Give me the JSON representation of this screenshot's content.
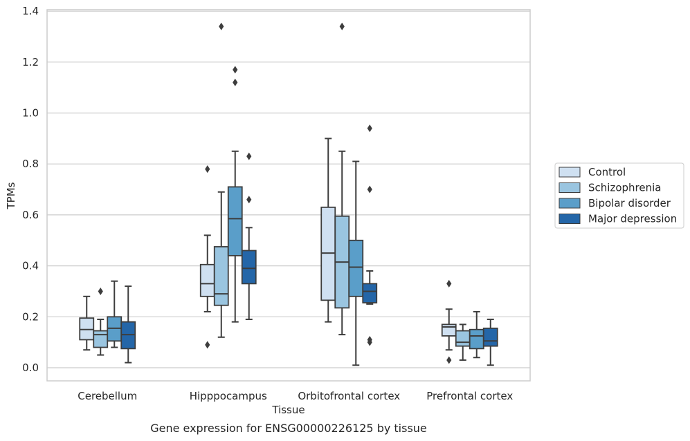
{
  "caption": "Gene expression for ENSG00000226125 by tissue",
  "chart_data": {
    "type": "box",
    "xlabel": "Tissue",
    "ylabel": "TPMs",
    "ylim": [
      -0.05,
      1.41
    ],
    "yticks": [
      "0.0",
      "0.2",
      "0.4",
      "0.6",
      "0.8",
      "1.0",
      "1.2",
      "1.4"
    ],
    "grid": "horizontal",
    "legend_position": "right",
    "categories": [
      "Cerebellum",
      "Hipppocampus",
      "Orbitofrontal cortex",
      "Prefrontal cortex"
    ],
    "series": [
      {
        "name": "Control",
        "color": "#cfe0f1",
        "boxes": [
          {
            "whislo": 0.07,
            "q1": 0.11,
            "med": 0.15,
            "q3": 0.195,
            "whishi": 0.28,
            "fliers": []
          },
          {
            "whislo": 0.22,
            "q1": 0.28,
            "med": 0.33,
            "q3": 0.405,
            "whishi": 0.52,
            "fliers": [
              0.09,
              0.78
            ]
          },
          {
            "whislo": 0.18,
            "q1": 0.265,
            "med": 0.45,
            "q3": 0.63,
            "whishi": 0.9,
            "fliers": []
          },
          {
            "whislo": 0.07,
            "q1": 0.125,
            "med": 0.16,
            "q3": 0.17,
            "whishi": 0.23,
            "fliers": [
              0.03,
              0.33
            ]
          }
        ]
      },
      {
        "name": "Schizophrenia",
        "color": "#9ac5e0",
        "boxes": [
          {
            "whislo": 0.05,
            "q1": 0.08,
            "med": 0.13,
            "q3": 0.145,
            "whishi": 0.19,
            "fliers": [
              0.3
            ]
          },
          {
            "whislo": 0.12,
            "q1": 0.245,
            "med": 0.29,
            "q3": 0.475,
            "whishi": 0.69,
            "fliers": [
              1.34
            ]
          },
          {
            "whislo": 0.13,
            "q1": 0.235,
            "med": 0.415,
            "q3": 0.595,
            "whishi": 0.85,
            "fliers": [
              1.34
            ]
          },
          {
            "whislo": 0.03,
            "q1": 0.085,
            "med": 0.1,
            "q3": 0.145,
            "whishi": 0.17,
            "fliers": []
          }
        ]
      },
      {
        "name": "Bipolar disorder",
        "color": "#5a9ec9",
        "boxes": [
          {
            "whislo": 0.08,
            "q1": 0.105,
            "med": 0.155,
            "q3": 0.2,
            "whishi": 0.34,
            "fliers": []
          },
          {
            "whislo": 0.18,
            "q1": 0.44,
            "med": 0.585,
            "q3": 0.71,
            "whishi": 0.85,
            "fliers": [
              1.12,
              1.17
            ]
          },
          {
            "whislo": 0.01,
            "q1": 0.28,
            "med": 0.395,
            "q3": 0.5,
            "whishi": 0.81,
            "fliers": []
          },
          {
            "whislo": 0.04,
            "q1": 0.075,
            "med": 0.125,
            "q3": 0.15,
            "whishi": 0.22,
            "fliers": []
          }
        ]
      },
      {
        "name": "Major depression",
        "color": "#2466a8",
        "boxes": [
          {
            "whislo": 0.02,
            "q1": 0.075,
            "med": 0.13,
            "q3": 0.18,
            "whishi": 0.32,
            "fliers": []
          },
          {
            "whislo": 0.19,
            "q1": 0.33,
            "med": 0.39,
            "q3": 0.46,
            "whishi": 0.55,
            "fliers": [
              0.66,
              0.83
            ]
          },
          {
            "whislo": 0.25,
            "q1": 0.255,
            "med": 0.3,
            "q3": 0.33,
            "whishi": 0.38,
            "fliers": [
              0.1,
              0.11,
              0.7,
              0.94
            ]
          },
          {
            "whislo": 0.01,
            "q1": 0.085,
            "med": 0.105,
            "q3": 0.155,
            "whishi": 0.19,
            "fliers": []
          }
        ]
      }
    ]
  }
}
